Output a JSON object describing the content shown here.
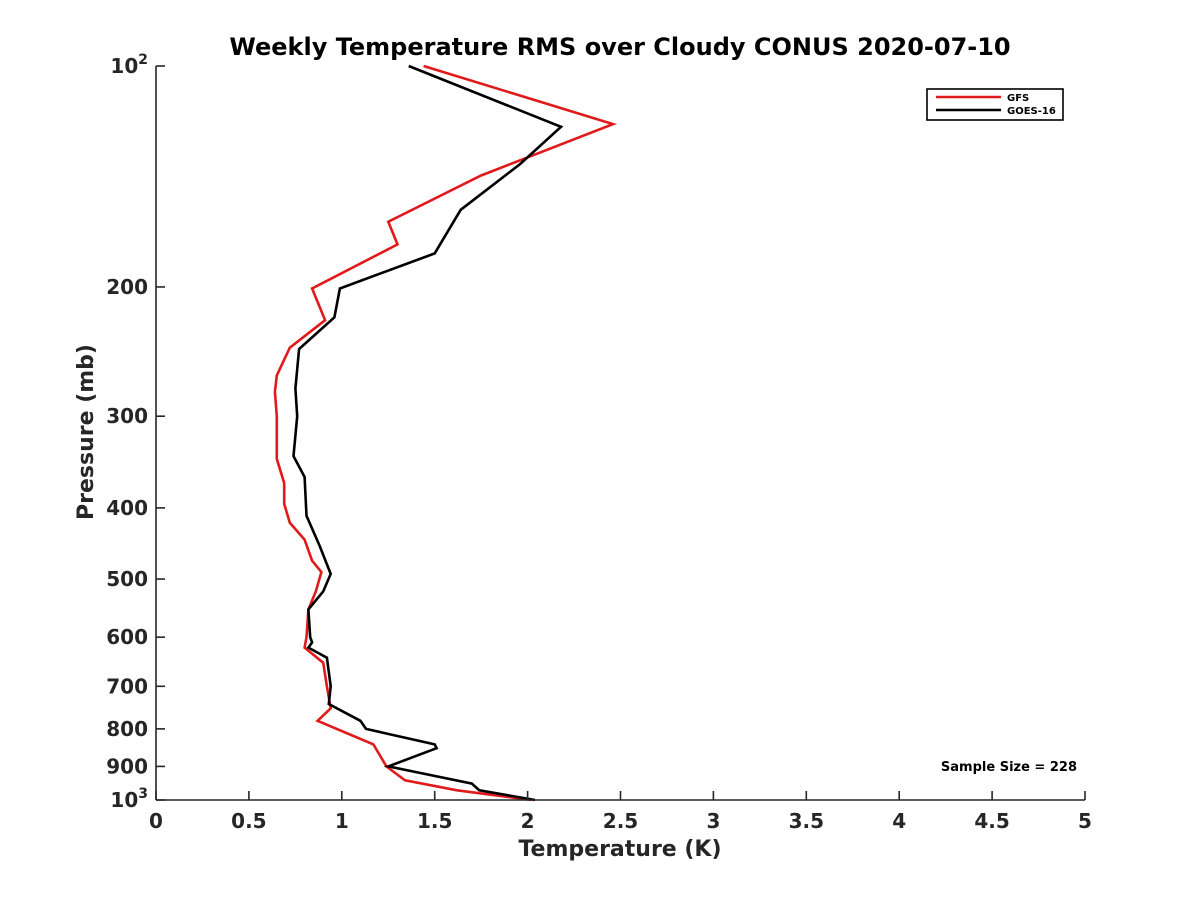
{
  "chart_data": {
    "type": "line",
    "title": "Weekly Temperature RMS over Cloudy CONUS 2020-07-10",
    "xlabel": "Temperature (K)",
    "ylabel": "Pressure (mb)",
    "xlim": [
      0,
      5
    ],
    "ylim": [
      100,
      1000
    ],
    "yscale": "log",
    "y_reversed": true,
    "x_ticks": [
      0,
      0.5,
      1,
      1.5,
      2,
      2.5,
      3,
      3.5,
      4,
      4.5,
      5
    ],
    "x_tick_labels": [
      "0",
      "0.5",
      "1",
      "1.5",
      "2",
      "2.5",
      "3",
      "3.5",
      "4",
      "4.5",
      "5"
    ],
    "y_ticks": [
      100,
      200,
      300,
      400,
      500,
      600,
      700,
      800,
      900,
      1000
    ],
    "y_tick_labels": {
      "100": {
        "base": "10",
        "exp": "2"
      },
      "200": {
        "base": "200"
      },
      "300": {
        "base": "300"
      },
      "400": {
        "base": "400"
      },
      "500": {
        "base": "500"
      },
      "600": {
        "base": "600"
      },
      "700": {
        "base": "700"
      },
      "800": {
        "base": "800"
      },
      "900": {
        "base": "900"
      },
      "1000": {
        "base": "10",
        "exp": "3"
      }
    },
    "grid": false,
    "legend_position": "top-right",
    "series": [
      {
        "name": "GFS",
        "color": "#e01a1a",
        "points": [
          [
            1.44,
            100
          ],
          [
            2.46,
            120
          ],
          [
            1.75,
            141
          ],
          [
            1.25,
            163
          ],
          [
            1.3,
            175
          ],
          [
            0.84,
            201
          ],
          [
            0.91,
            222
          ],
          [
            0.72,
            242
          ],
          [
            0.65,
            264
          ],
          [
            0.64,
            278
          ],
          [
            0.65,
            300
          ],
          [
            0.65,
            343
          ],
          [
            0.69,
            370
          ],
          [
            0.69,
            395
          ],
          [
            0.72,
            419
          ],
          [
            0.8,
            442
          ],
          [
            0.84,
            472
          ],
          [
            0.89,
            489
          ],
          [
            0.86,
            520
          ],
          [
            0.82,
            550
          ],
          [
            0.81,
            600
          ],
          [
            0.8,
            620
          ],
          [
            0.9,
            650
          ],
          [
            0.92,
            700
          ],
          [
            0.94,
            750
          ],
          [
            0.87,
            780
          ],
          [
            1.17,
            840
          ],
          [
            1.24,
            900
          ],
          [
            1.34,
            940
          ],
          [
            1.62,
            970
          ],
          [
            2.02,
            1000
          ]
        ]
      },
      {
        "name": "GOES-16",
        "color": "#000000",
        "points": [
          [
            1.36,
            100
          ],
          [
            2.18,
            121
          ],
          [
            1.96,
            136
          ],
          [
            1.64,
            157
          ],
          [
            1.5,
            180
          ],
          [
            0.99,
            201
          ],
          [
            0.96,
            220
          ],
          [
            0.77,
            243
          ],
          [
            0.75,
            275
          ],
          [
            0.76,
            300
          ],
          [
            0.74,
            340
          ],
          [
            0.8,
            363
          ],
          [
            0.81,
            410
          ],
          [
            0.88,
            450
          ],
          [
            0.94,
            492
          ],
          [
            0.9,
            520
          ],
          [
            0.82,
            550
          ],
          [
            0.83,
            600
          ],
          [
            0.84,
            610
          ],
          [
            0.82,
            620
          ],
          [
            0.92,
            640
          ],
          [
            0.94,
            700
          ],
          [
            0.93,
            740
          ],
          [
            1.1,
            780
          ],
          [
            1.13,
            800
          ],
          [
            1.5,
            840
          ],
          [
            1.51,
            850
          ],
          [
            1.25,
            900
          ],
          [
            1.7,
            950
          ],
          [
            1.74,
            970
          ],
          [
            2.04,
            1000
          ]
        ]
      }
    ],
    "annotations": [
      {
        "text": "Sample Size = 228",
        "position": "bottom-right"
      }
    ]
  }
}
